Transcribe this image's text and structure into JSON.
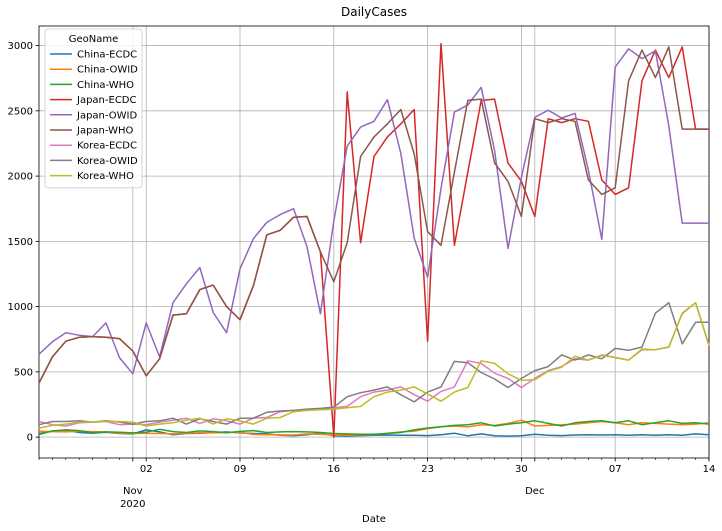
{
  "chart_data": {
    "type": "line",
    "title": "DailyCases",
    "xlabel": "Date",
    "ylabel": "",
    "x_range": [
      "2020-10-25",
      "2020-12-14"
    ],
    "ylim": [
      -160,
      3150
    ],
    "grid": true,
    "legend_position": "top-left",
    "legend_title": "GeoName",
    "y_ticks": [
      0,
      500,
      1000,
      1500,
      2000,
      2500,
      3000
    ],
    "x_ticks": [
      {
        "date": "2020-11-02",
        "label": "02"
      },
      {
        "date": "2020-11-09",
        "label": "09"
      },
      {
        "date": "2020-11-16",
        "label": "16"
      },
      {
        "date": "2020-11-23",
        "label": "23"
      },
      {
        "date": "2020-11-30",
        "label": "30"
      },
      {
        "date": "2020-12-07",
        "label": "07"
      },
      {
        "date": "2020-12-14",
        "label": "14"
      }
    ],
    "month_labels": [
      {
        "date": "2020-11-01",
        "month": "Nov",
        "year": "2020"
      },
      {
        "date": "2020-12-01",
        "month": "Dec",
        "year": ""
      }
    ],
    "x_dates": [
      "2020-10-25",
      "2020-10-26",
      "2020-10-27",
      "2020-10-28",
      "2020-10-29",
      "2020-10-30",
      "2020-10-31",
      "2020-11-01",
      "2020-11-02",
      "2020-11-03",
      "2020-11-04",
      "2020-11-05",
      "2020-11-06",
      "2020-11-07",
      "2020-11-08",
      "2020-11-09",
      "2020-11-10",
      "2020-11-11",
      "2020-11-12",
      "2020-11-13",
      "2020-11-14",
      "2020-11-15",
      "2020-11-16",
      "2020-11-17",
      "2020-11-18",
      "2020-11-19",
      "2020-11-20",
      "2020-11-21",
      "2020-11-22",
      "2020-11-23",
      "2020-11-24",
      "2020-11-25",
      "2020-11-26",
      "2020-11-27",
      "2020-11-28",
      "2020-11-29",
      "2020-11-30",
      "2020-12-01",
      "2020-12-02",
      "2020-12-03",
      "2020-12-04",
      "2020-12-05",
      "2020-12-06",
      "2020-12-07",
      "2020-12-08",
      "2020-12-09",
      "2020-12-10",
      "2020-12-11",
      "2020-12-12",
      "2020-12-13",
      "2020-12-14"
    ],
    "series": [
      {
        "name": "China-ECDC",
        "color": "#1f77b4",
        "values": [
          28,
          45,
          52,
          35,
          30,
          38,
          28,
          25,
          55,
          40,
          18,
          28,
          30,
          35,
          40,
          32,
          28,
          25,
          15,
          10,
          18,
          30,
          10,
          8,
          12,
          15,
          16,
          14,
          14,
          12,
          18,
          30,
          10,
          25,
          10,
          8,
          10,
          22,
          15,
          12,
          16,
          18,
          16,
          18,
          15,
          18,
          14,
          18,
          14,
          25,
          18
        ]
      },
      {
        "name": "China-OWID",
        "color": "#ff7f0e",
        "values": [
          45,
          42,
          40,
          45,
          42,
          40,
          30,
          28,
          30,
          28,
          25,
          30,
          34,
          32,
          35,
          38,
          20,
          18,
          17,
          16,
          25,
          22,
          16,
          14,
          18,
          20,
          30,
          40,
          45,
          65,
          80,
          85,
          78,
          95,
          90,
          105,
          130,
          85,
          90,
          95,
          100,
          110,
          120,
          110,
          95,
          110,
          105,
          100,
          95,
          100,
          110
        ]
      },
      {
        "name": "China-WHO",
        "color": "#2ca02c",
        "values": [
          20,
          48,
          55,
          50,
          34,
          40,
          38,
          32,
          38,
          60,
          42,
          35,
          48,
          42,
          34,
          44,
          50,
          35,
          40,
          42,
          40,
          35,
          28,
          25,
          22,
          22,
          28,
          35,
          55,
          70,
          80,
          90,
          95,
          110,
          85,
          100,
          110,
          125,
          105,
          85,
          110,
          120,
          125,
          110,
          125,
          95,
          110,
          125,
          105,
          110,
          100
        ]
      },
      {
        "name": "Japan-ECDC",
        "color": "#d62728",
        "values": [
          415,
          615,
          735,
          765,
          770,
          765,
          755,
          660,
          470,
          600,
          935,
          945,
          1130,
          1165,
          1000,
          900,
          1160,
          1550,
          1585,
          1685,
          1690,
          1420,
          0,
          2645,
          1490,
          2150,
          2300,
          2400,
          2510,
          735,
          3015,
          1470,
          2030,
          2580,
          2590,
          2100,
          1960,
          1690,
          2440,
          2410,
          2440,
          2420,
          1970,
          1860,
          1910,
          2730,
          2965,
          2755,
          2990,
          2360,
          2360
        ]
      },
      {
        "name": "Japan-OWID",
        "color": "#9467bd",
        "values": [
          635,
          730,
          800,
          780,
          770,
          875,
          610,
          485,
          875,
          615,
          1030,
          1175,
          1300,
          955,
          800,
          1290,
          1520,
          1645,
          1705,
          1750,
          1460,
          945,
          1655,
          2230,
          2375,
          2420,
          2585,
          2175,
          1525,
          1225,
          1905,
          2490,
          2545,
          2680,
          2195,
          1445,
          1990,
          2450,
          2505,
          2445,
          2480,
          2045,
          1515,
          2835,
          2975,
          2900,
          2960,
          2385,
          1640,
          1640,
          1640
        ]
      },
      {
        "name": "Japan-WHO",
        "color": "#8c564b",
        "values": [
          415,
          615,
          735,
          765,
          770,
          765,
          755,
          660,
          470,
          600,
          935,
          945,
          1130,
          1165,
          1000,
          900,
          1160,
          1550,
          1585,
          1685,
          1690,
          1420,
          1190,
          1490,
          2150,
          2300,
          2400,
          2510,
          2170,
          1575,
          1470,
          2030,
          2580,
          2590,
          2100,
          1960,
          1690,
          2440,
          2410,
          2440,
          2420,
          1970,
          1860,
          1910,
          2730,
          2965,
          2755,
          2990,
          2360,
          2360,
          2360
        ]
      },
      {
        "name": "Korea-ECDC",
        "color": "#e377c2",
        "values": [
          120,
          95,
          85,
          110,
          115,
          120,
          95,
          100,
          95,
          115,
          130,
          145,
          105,
          140,
          125,
          100,
          145,
          150,
          195,
          205,
          210,
          215,
          225,
          235,
          310,
          345,
          360,
          385,
          325,
          275,
          350,
          385,
          585,
          565,
          490,
          450,
          380,
          450,
          510,
          540,
          600,
          590,
          630,
          610,
          590,
          670,
          670,
          690,
          950,
          1030,
          700
        ]
      },
      {
        "name": "Korea-OWID",
        "color": "#7f7f7f",
        "values": [
          95,
          120,
          120,
          125,
          115,
          125,
          115,
          100,
          120,
          125,
          145,
          100,
          140,
          120,
          100,
          145,
          145,
          190,
          200,
          205,
          215,
          220,
          230,
          310,
          340,
          360,
          385,
          325,
          270,
          345,
          385,
          580,
          570,
          495,
          445,
          380,
          450,
          510,
          540,
          630,
          590,
          630,
          600,
          680,
          665,
          690,
          950,
          1030,
          715,
          880,
          880
        ]
      },
      {
        "name": "Korea-WHO",
        "color": "#bcbd22",
        "values": [
          70,
          90,
          100,
          115,
          115,
          120,
          120,
          115,
          85,
          100,
          110,
          130,
          145,
          100,
          140,
          125,
          100,
          145,
          150,
          195,
          205,
          210,
          215,
          225,
          235,
          310,
          345,
          360,
          385,
          330,
          275,
          345,
          380,
          585,
          565,
          485,
          435,
          440,
          505,
          535,
          620,
          590,
          625,
          610,
          590,
          675,
          670,
          690,
          945,
          1030,
          705
        ]
      }
    ]
  }
}
